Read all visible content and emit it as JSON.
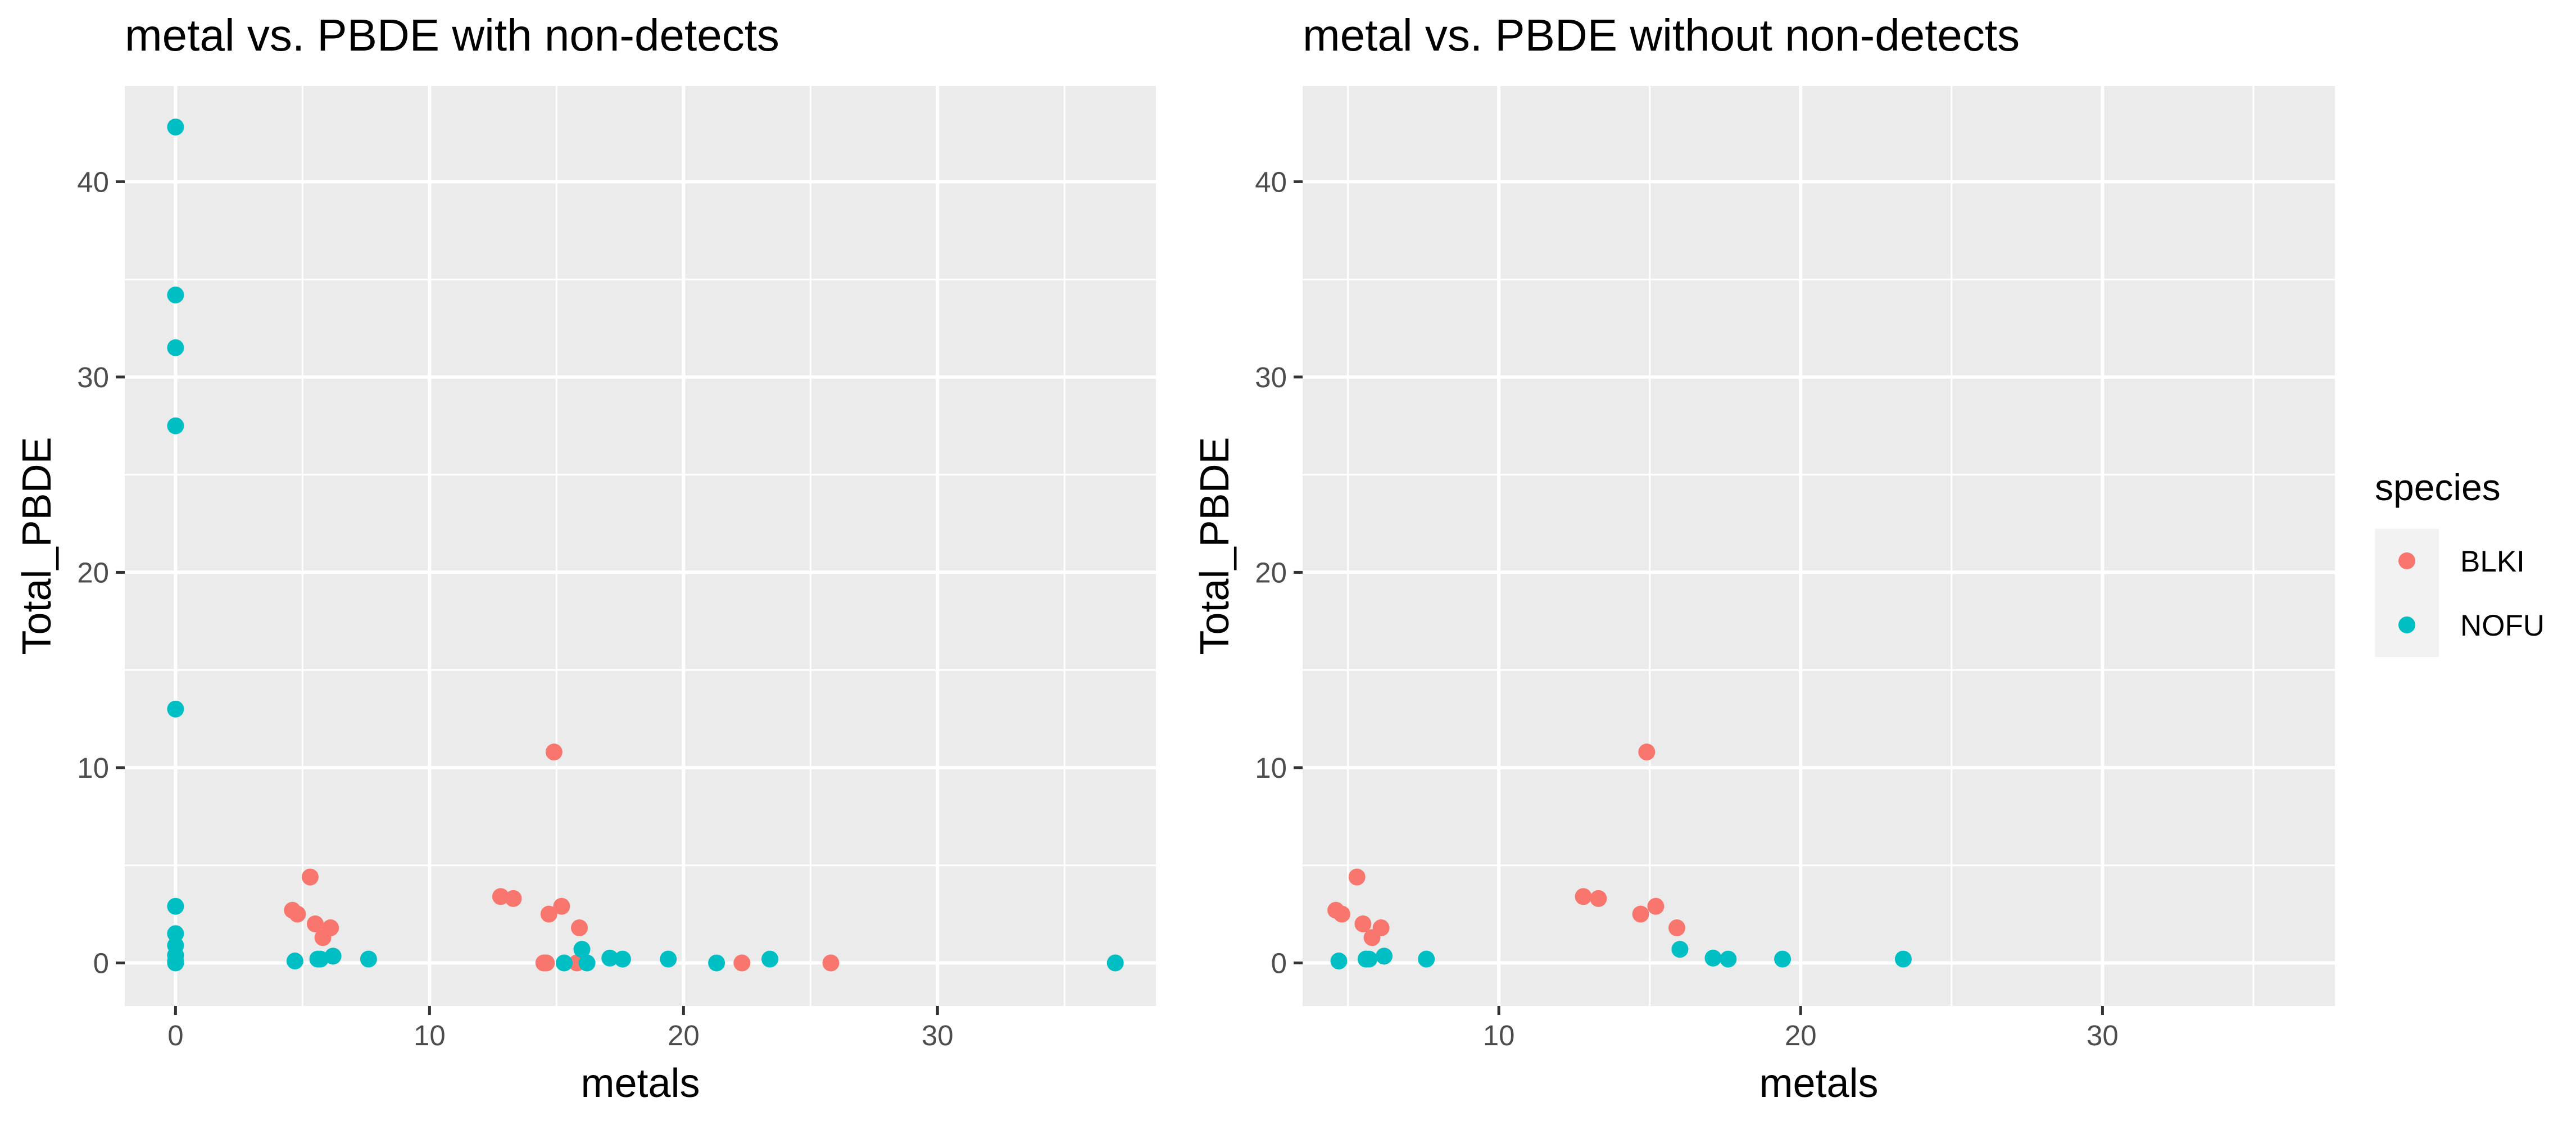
{
  "chart_data": [
    {
      "type": "scatter",
      "title": "metal vs. PBDE with non-detects",
      "xlabel": "metals",
      "ylabel": "Total_PBDE",
      "xlim": [
        -2,
        38.6
      ],
      "ylim": [
        -2.2,
        44.9
      ],
      "xticks": [
        0,
        10,
        20,
        30
      ],
      "yticks": [
        0,
        10,
        20,
        30,
        40
      ],
      "grid": true,
      "series": [
        {
          "name": "BLKI",
          "points": [
            [
              4.6,
              2.7
            ],
            [
              4.8,
              2.5
            ],
            [
              5.3,
              4.4
            ],
            [
              5.5,
              2.0
            ],
            [
              5.8,
              1.3
            ],
            [
              6.1,
              1.8
            ],
            [
              12.8,
              3.4
            ],
            [
              13.3,
              3.3
            ],
            [
              14.5,
              0.0
            ],
            [
              14.7,
              2.5
            ],
            [
              14.9,
              10.8
            ],
            [
              15.2,
              2.9
            ],
            [
              14.6,
              0.0
            ],
            [
              15.8,
              0.0
            ],
            [
              15.9,
              1.8
            ],
            [
              22.3,
              0.0
            ],
            [
              25.8,
              0.0
            ]
          ]
        },
        {
          "name": "NOFU",
          "points": [
            [
              0.0,
              42.8
            ],
            [
              0.0,
              34.2
            ],
            [
              0.0,
              31.5
            ],
            [
              0.0,
              27.5
            ],
            [
              0.0,
              13.0
            ],
            [
              0.0,
              2.9
            ],
            [
              0.0,
              1.5
            ],
            [
              0.0,
              0.9
            ],
            [
              0.0,
              0.4
            ],
            [
              0.0,
              0.1
            ],
            [
              0.0,
              0.0
            ],
            [
              4.7,
              0.1
            ],
            [
              5.6,
              0.2
            ],
            [
              5.7,
              0.2
            ],
            [
              6.2,
              0.35
            ],
            [
              7.6,
              0.2
            ],
            [
              15.3,
              0.0
            ],
            [
              16.0,
              0.7
            ],
            [
              16.2,
              0.0
            ],
            [
              17.1,
              0.25
            ],
            [
              17.6,
              0.2
            ],
            [
              19.4,
              0.2
            ],
            [
              21.3,
              0.0
            ],
            [
              23.4,
              0.2
            ],
            [
              37.0,
              0.0
            ]
          ]
        }
      ]
    },
    {
      "type": "scatter",
      "title": "metal vs. PBDE without non-detects",
      "xlabel": "metals",
      "ylabel": "Total_PBDE",
      "xlim": [
        3.5,
        37.7
      ],
      "ylim": [
        -2.2,
        44.9
      ],
      "xticks": [
        10,
        20,
        30
      ],
      "yticks": [
        0,
        10,
        20,
        30,
        40
      ],
      "grid": true,
      "series": [
        {
          "name": "BLKI",
          "points": [
            [
              4.6,
              2.7
            ],
            [
              4.8,
              2.5
            ],
            [
              5.3,
              4.4
            ],
            [
              5.5,
              2.0
            ],
            [
              5.8,
              1.3
            ],
            [
              6.1,
              1.8
            ],
            [
              12.8,
              3.4
            ],
            [
              13.3,
              3.3
            ],
            [
              14.7,
              2.5
            ],
            [
              14.9,
              10.8
            ],
            [
              15.2,
              2.9
            ],
            [
              15.9,
              1.8
            ]
          ]
        },
        {
          "name": "NOFU",
          "points": [
            [
              4.7,
              0.1
            ],
            [
              5.6,
              0.2
            ],
            [
              5.7,
              0.2
            ],
            [
              6.2,
              0.35
            ],
            [
              7.6,
              0.2
            ],
            [
              16.0,
              0.7
            ],
            [
              17.1,
              0.25
            ],
            [
              17.6,
              0.2
            ],
            [
              19.4,
              0.2
            ],
            [
              23.4,
              0.2
            ]
          ]
        }
      ]
    }
  ],
  "legend": {
    "title": "species",
    "placement": "right",
    "items": [
      {
        "label": "BLKI",
        "color": "#F8766D"
      },
      {
        "label": "NOFU",
        "color": "#00BFC4"
      }
    ]
  },
  "colors": {
    "panel_bg": "#EBEBEB",
    "grid": "#FFFFFF",
    "legend_key_bg": "#F2F2F2",
    "tick_text": "#4D4D4D",
    "tick_mark": "#333333"
  }
}
